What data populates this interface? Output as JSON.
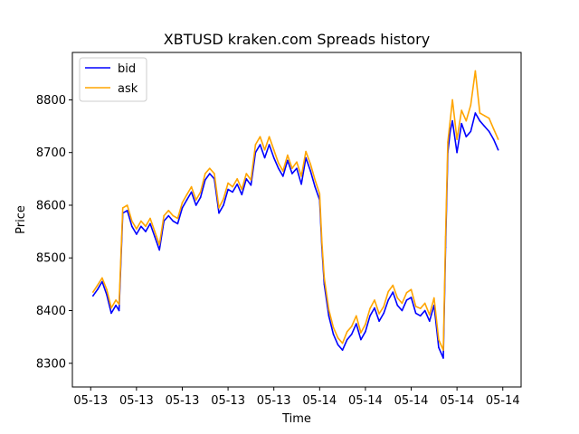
{
  "chart_data": {
    "type": "line",
    "title": "XBTUSD kraken.com Spreads history",
    "xlabel": "Time",
    "ylabel": "Price",
    "xlim": [
      -0.4,
      9.4
    ],
    "ylim": [
      8255,
      8890
    ],
    "x_ticks": [
      {
        "pos": 0,
        "label": "05-13"
      },
      {
        "pos": 1,
        "label": "05-13"
      },
      {
        "pos": 2,
        "label": "05-13"
      },
      {
        "pos": 3,
        "label": "05-13"
      },
      {
        "pos": 4,
        "label": "05-13"
      },
      {
        "pos": 5,
        "label": "05-14"
      },
      {
        "pos": 6,
        "label": "05-14"
      },
      {
        "pos": 7,
        "label": "05-14"
      },
      {
        "pos": 8,
        "label": "05-14"
      },
      {
        "pos": 9,
        "label": "05-14"
      }
    ],
    "y_ticks": [
      8300,
      8400,
      8500,
      8600,
      8700,
      8800
    ],
    "grid": false,
    "legend": "upper left",
    "x": [
      0.05,
      0.15,
      0.25,
      0.35,
      0.45,
      0.55,
      0.62,
      0.7,
      0.8,
      0.9,
      1.0,
      1.1,
      1.2,
      1.3,
      1.4,
      1.5,
      1.6,
      1.7,
      1.8,
      1.9,
      2.0,
      2.1,
      2.2,
      2.3,
      2.4,
      2.5,
      2.6,
      2.7,
      2.8,
      2.9,
      3.0,
      3.1,
      3.2,
      3.3,
      3.4,
      3.5,
      3.6,
      3.7,
      3.8,
      3.9,
      4.0,
      4.1,
      4.2,
      4.3,
      4.4,
      4.5,
      4.6,
      4.7,
      4.8,
      4.9,
      5.0,
      5.05,
      5.1,
      5.2,
      5.3,
      5.4,
      5.5,
      5.6,
      5.7,
      5.8,
      5.9,
      6.0,
      6.1,
      6.2,
      6.3,
      6.4,
      6.5,
      6.6,
      6.7,
      6.8,
      6.9,
      7.0,
      7.1,
      7.2,
      7.3,
      7.4,
      7.5,
      7.6,
      7.7,
      7.75,
      7.8,
      7.85,
      7.9,
      8.0,
      8.1,
      8.2,
      8.3,
      8.4,
      8.5,
      8.6,
      8.7,
      8.8,
      8.9
    ],
    "series": [
      {
        "name": "bid",
        "color": "#0000ff",
        "values": [
          8428,
          8440,
          8455,
          8430,
          8395,
          8410,
          8400,
          8585,
          8590,
          8560,
          8545,
          8560,
          8550,
          8565,
          8540,
          8515,
          8570,
          8580,
          8570,
          8565,
          8595,
          8610,
          8625,
          8600,
          8615,
          8648,
          8660,
          8650,
          8585,
          8600,
          8630,
          8625,
          8640,
          8620,
          8650,
          8638,
          8700,
          8715,
          8690,
          8715,
          8690,
          8670,
          8655,
          8685,
          8660,
          8670,
          8640,
          8690,
          8665,
          8635,
          8610,
          8520,
          8450,
          8390,
          8355,
          8335,
          8325,
          8345,
          8355,
          8375,
          8345,
          8360,
          8390,
          8405,
          8380,
          8395,
          8420,
          8435,
          8410,
          8400,
          8420,
          8425,
          8395,
          8390,
          8400,
          8380,
          8410,
          8330,
          8310,
          8520,
          8700,
          8740,
          8760,
          8700,
          8755,
          8730,
          8740,
          8775,
          8760,
          8750,
          8740,
          8725,
          8705
        ]
      },
      {
        "name": "ask",
        "color": "#ffa500",
        "values": [
          8435,
          8448,
          8462,
          8440,
          8405,
          8420,
          8412,
          8595,
          8600,
          8570,
          8555,
          8570,
          8560,
          8575,
          8550,
          8525,
          8580,
          8590,
          8580,
          8575,
          8605,
          8620,
          8635,
          8610,
          8625,
          8660,
          8670,
          8660,
          8595,
          8612,
          8642,
          8635,
          8650,
          8630,
          8660,
          8648,
          8715,
          8730,
          8705,
          8730,
          8705,
          8680,
          8665,
          8695,
          8670,
          8682,
          8655,
          8702,
          8678,
          8648,
          8622,
          8530,
          8462,
          8402,
          8368,
          8348,
          8338,
          8360,
          8370,
          8390,
          8358,
          8374,
          8404,
          8420,
          8394,
          8408,
          8436,
          8448,
          8424,
          8414,
          8434,
          8440,
          8408,
          8404,
          8414,
          8392,
          8424,
          8345,
          8325,
          8540,
          8720,
          8760,
          8800,
          8725,
          8780,
          8760,
          8790,
          8855,
          8775,
          8770,
          8765,
          8745,
          8725
        ]
      }
    ]
  }
}
